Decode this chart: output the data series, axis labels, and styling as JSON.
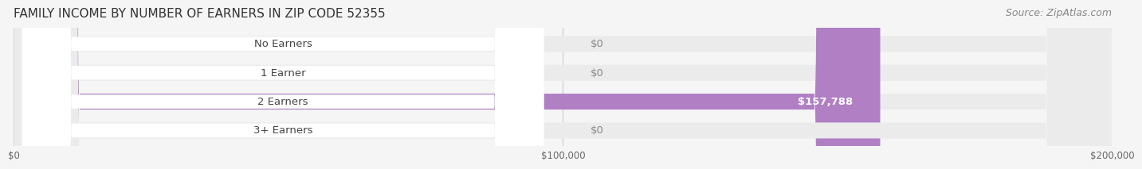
{
  "title": "FAMILY INCOME BY NUMBER OF EARNERS IN ZIP CODE 52355",
  "source": "Source: ZipAtlas.com",
  "categories": [
    "No Earners",
    "1 Earner",
    "2 Earners",
    "3+ Earners"
  ],
  "values": [
    0,
    0,
    157788,
    0
  ],
  "bar_colors": [
    "#f4a0a0",
    "#aac4e8",
    "#b07fc4",
    "#6dcdc8"
  ],
  "label_colors": [
    "#f4a0a0",
    "#aac4e8",
    "#8b5fa0",
    "#6dcdc8"
  ],
  "background_color": "#f5f5f5",
  "bar_bg_color": "#ebebeb",
  "xlim": [
    0,
    200000
  ],
  "xticks": [
    0,
    100000,
    200000
  ],
  "xtick_labels": [
    "$0",
    "$100,000",
    "$200,000"
  ],
  "value_label_color": "#ffffff",
  "zero_label_color": "#888888",
  "title_fontsize": 11,
  "source_fontsize": 9,
  "bar_height": 0.55,
  "label_fontsize": 9.5
}
